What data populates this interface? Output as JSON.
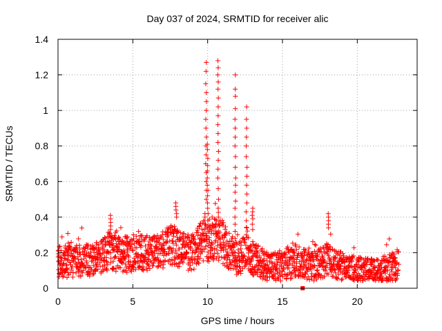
{
  "chart_data": {
    "type": "scatter",
    "title": "Day 037 of 2024, SRMTID for receiver alic",
    "xlabel": "GPS time / hours",
    "ylabel": "SRMTID / TECUs",
    "xlim": [
      0,
      24
    ],
    "ylim": [
      0,
      1.4
    ],
    "xticks": [
      0,
      5,
      10,
      15,
      20
    ],
    "yticks": [
      0,
      0.2,
      0.4,
      0.6,
      0.8,
      1,
      1.2,
      1.4
    ],
    "xtick_labels": [
      "0",
      "5",
      "10",
      "15",
      "20"
    ],
    "ytick_labels": [
      "0",
      "0.2",
      "0.4",
      "0.6",
      "0.8",
      "1",
      "1.2",
      "1.4"
    ],
    "grid": true,
    "marker": "plus",
    "color": "#ff0000",
    "series": [
      {
        "name": "SRMTID",
        "base_profile": [
          [
            0.0,
            0.15
          ],
          [
            1.0,
            0.15
          ],
          [
            2.0,
            0.16
          ],
          [
            3.0,
            0.18
          ],
          [
            3.5,
            0.22
          ],
          [
            4.0,
            0.19
          ],
          [
            5.0,
            0.19
          ],
          [
            6.0,
            0.2
          ],
          [
            7.0,
            0.22
          ],
          [
            7.6,
            0.25
          ],
          [
            8.0,
            0.22
          ],
          [
            9.0,
            0.2
          ],
          [
            9.5,
            0.25
          ],
          [
            10.0,
            0.27
          ],
          [
            10.5,
            0.28
          ],
          [
            11.0,
            0.26
          ],
          [
            11.5,
            0.2
          ],
          [
            12.0,
            0.16
          ],
          [
            12.5,
            0.2
          ],
          [
            13.0,
            0.17
          ],
          [
            14.0,
            0.12
          ],
          [
            15.0,
            0.12
          ],
          [
            16.0,
            0.16
          ],
          [
            17.0,
            0.12
          ],
          [
            18.0,
            0.16
          ],
          [
            19.0,
            0.12
          ],
          [
            20.0,
            0.1
          ],
          [
            21.0,
            0.1
          ],
          [
            22.0,
            0.11
          ],
          [
            22.8,
            0.13
          ]
        ],
        "spikes": [
          {
            "x": 9.9,
            "values": [
              1.27,
              1.22,
              1.15,
              1.1,
              1.05,
              1.0,
              0.95,
              0.9,
              0.85,
              0.8,
              0.75,
              0.7,
              0.65,
              0.6,
              0.55,
              0.5
            ]
          },
          {
            "x": 10.0,
            "values": [
              0.81,
              0.78,
              0.73,
              0.69,
              0.66,
              0.62,
              0.58,
              0.55,
              0.52,
              0.48,
              0.45,
              0.42,
              0.38,
              0.35
            ]
          },
          {
            "x": 10.7,
            "values": [
              1.28,
              1.24,
              1.2,
              1.16,
              1.12,
              1.07,
              1.02,
              0.97,
              0.92,
              0.87,
              0.82,
              0.77,
              0.72,
              0.67,
              0.62,
              0.56,
              0.5,
              0.45,
              0.4
            ]
          },
          {
            "x": 11.85,
            "values": [
              1.2,
              1.12,
              1.08,
              1.01,
              0.95,
              0.9,
              0.85,
              0.8,
              0.74,
              0.68,
              0.62,
              0.58,
              0.54,
              0.49,
              0.45,
              0.4,
              0.36,
              0.32,
              0.28
            ]
          },
          {
            "x": 12.6,
            "values": [
              1.02,
              0.95,
              0.9,
              0.85,
              0.8,
              0.74,
              0.68,
              0.63,
              0.58,
              0.53,
              0.48,
              0.43,
              0.38,
              0.34,
              0.3
            ]
          },
          {
            "x": 13.0,
            "values": [
              0.45,
              0.43,
              0.41,
              0.39,
              0.36,
              0.33
            ]
          },
          {
            "x": 18.05,
            "values": [
              0.42,
              0.4,
              0.38,
              0.36,
              0.34
            ]
          },
          {
            "x": 3.5,
            "values": [
              0.41,
              0.39,
              0.37,
              0.35,
              0.33
            ]
          },
          {
            "x": 7.9,
            "values": [
              0.48,
              0.46,
              0.44,
              0.42,
              0.4
            ]
          },
          {
            "x": 9.8,
            "values": [
              0.42,
              0.4,
              0.38,
              0.36
            ]
          }
        ],
        "outliers": [
          {
            "x": 16.35,
            "y": 0.0,
            "marker": "square"
          }
        ]
      }
    ]
  }
}
